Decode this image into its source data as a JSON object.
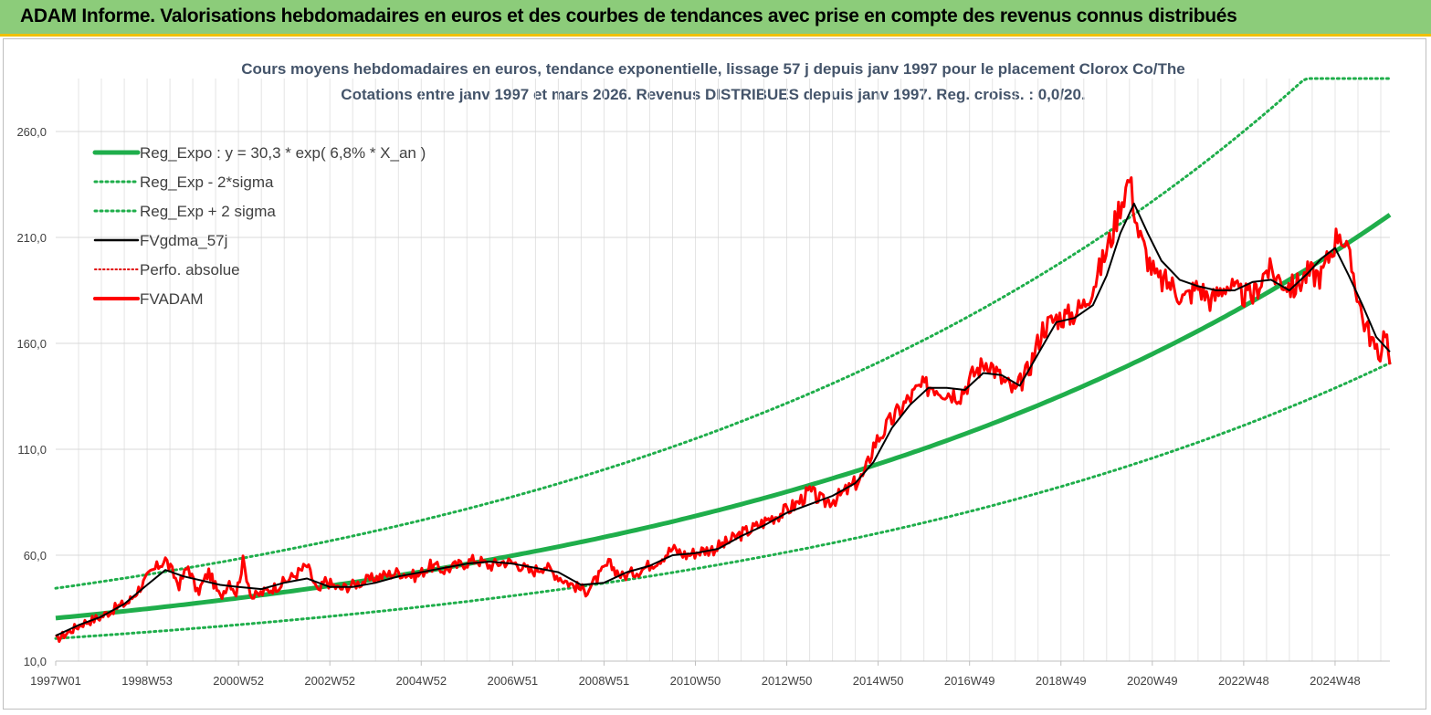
{
  "header": {
    "title": "ADAM Informe. Valorisations hebdomadaires en euros et des courbes de tendances avec prise en compte des revenus connus distribués"
  },
  "chart_data": {
    "type": "line",
    "title_lines": [
      "Cours moyens hebdomadaires en euros, tendance exponentielle, lissage 57 j depuis janv 1997 pour le placement Clorox Co/The",
      "Cotations entre janv 1997 et mars 2026. Revenus DISTRIBUES depuis janv 1997. Reg. croiss. : 0,0/20."
    ],
    "x_range": [
      1997.0,
      2026.2
    ],
    "ylim": [
      10,
      285
    ],
    "y_ticks": [
      "10,0",
      "60,0",
      "110,0",
      "160,0",
      "210,0",
      "260,0"
    ],
    "y_tick_values": [
      10,
      60,
      110,
      160,
      210,
      260
    ],
    "x_tick_labels": [
      "1997W01",
      "1998W53",
      "2000W52",
      "2002W52",
      "2004W52",
      "2006W51",
      "2008W51",
      "2010W50",
      "2012W50",
      "2014W50",
      "2016W49",
      "2018W49",
      "2020W49",
      "2022W48",
      "2024W48"
    ],
    "x_tick_years": [
      1997.0,
      1999.0,
      2001.0,
      2003.0,
      2005.0,
      2007.0,
      2009.0,
      2011.0,
      2013.0,
      2015.0,
      2017.0,
      2019.0,
      2021.0,
      2023.0,
      2025.0
    ],
    "grid": true,
    "legend_position": "top-left",
    "regression": {
      "a": 30.3,
      "growth": 0.068,
      "lower_factor": 0.683,
      "upper_factor": 1.465,
      "cap": 285
    },
    "series": [
      {
        "name": "Reg_Expo : y = 30,3 * exp( 6,8% *  X_an )",
        "color": "#1fae4b",
        "style": "solid-thick"
      },
      {
        "name": "Reg_Exp - 2*sigma",
        "color": "#1fae4b",
        "style": "dotted"
      },
      {
        "name": "Reg_Exp + 2 sigma",
        "color": "#1fae4b",
        "style": "dotted"
      },
      {
        "name": "FVgdma_57j",
        "color": "#000000",
        "style": "solid"
      },
      {
        "name": "Perfo. absolue",
        "color": "#e00000",
        "style": "dotted"
      },
      {
        "name": "FVADAM",
        "color": "#ff0000",
        "style": "solid-thick"
      }
    ],
    "fvadam": {
      "x": [
        1997.0,
        1997.3,
        1997.6,
        1998.0,
        1998.3,
        1998.6,
        1998.85,
        1999.1,
        1999.4,
        1999.7,
        1999.9,
        2000.1,
        2000.35,
        2000.6,
        2000.8,
        2000.95,
        2001.1,
        2001.3,
        2001.6,
        2001.9,
        2002.2,
        2002.5,
        2002.75,
        2002.9,
        2003.2,
        2003.5,
        2003.8,
        2004.1,
        2004.5,
        2004.9,
        2005.2,
        2005.5,
        2005.9,
        2006.2,
        2006.5,
        2006.8,
        2007.1,
        2007.4,
        2007.7,
        2008.0,
        2008.3,
        2008.6,
        2008.85,
        2009.1,
        2009.4,
        2009.8,
        2010.2,
        2010.5,
        2010.8,
        2011.1,
        2011.4,
        2011.7,
        2012.0,
        2012.3,
        2012.6,
        2012.9,
        2013.2,
        2013.5,
        2013.8,
        2014.1,
        2014.4,
        2014.7,
        2014.9,
        2015.1,
        2015.3,
        2015.6,
        2015.9,
        2016.2,
        2016.5,
        2016.8,
        2017.1,
        2017.4,
        2017.7,
        2018.0,
        2018.3,
        2018.6,
        2018.9,
        2019.2,
        2019.5,
        2019.8,
        2020.1,
        2020.3,
        2020.5,
        2020.7,
        2020.9,
        2021.1,
        2021.4,
        2021.7,
        2022.0,
        2022.3,
        2022.6,
        2022.9,
        2023.2,
        2023.5,
        2023.8,
        2024.1,
        2024.4,
        2024.7,
        2024.9,
        2025.1,
        2025.4,
        2025.6,
        2025.8,
        2025.95,
        2026.1,
        2026.2
      ],
      "y": [
        20,
        24,
        28,
        31,
        35,
        38,
        45,
        52,
        58,
        46,
        55,
        42,
        52,
        40,
        48,
        42,
        57,
        40,
        43,
        46,
        50,
        55,
        42,
        48,
        44,
        46,
        48,
        50,
        52,
        50,
        55,
        53,
        56,
        58,
        55,
        57,
        56,
        52,
        55,
        50,
        46,
        43,
        49,
        56,
        50,
        53,
        58,
        63,
        60,
        62,
        63,
        66,
        70,
        73,
        77,
        80,
        84,
        90,
        85,
        87,
        92,
        98,
        112,
        118,
        124,
        132,
        139,
        140,
        137,
        136,
        146,
        152,
        143,
        137,
        148,
        167,
        172,
        173,
        178,
        192,
        210,
        226,
        238,
        212,
        200,
        190,
        188,
        181,
        187,
        180,
        188,
        183,
        182,
        195,
        190,
        186,
        193,
        192,
        203,
        214,
        193,
        172,
        162,
        152,
        168,
        150
      ]
    },
    "fvgdma": {
      "x": [
        1997.0,
        1997.5,
        1998.0,
        1998.5,
        1999.0,
        1999.4,
        1999.8,
        2000.2,
        2000.6,
        2001.0,
        2001.5,
        2002.0,
        2002.5,
        2003.0,
        2003.5,
        2004.0,
        2004.5,
        2005.0,
        2005.5,
        2006.0,
        2006.5,
        2007.0,
        2007.5,
        2008.0,
        2008.5,
        2009.0,
        2009.5,
        2010.0,
        2010.5,
        2011.0,
        2011.5,
        2012.0,
        2012.5,
        2013.0,
        2013.5,
        2014.0,
        2014.5,
        2014.9,
        2015.3,
        2015.7,
        2016.1,
        2016.5,
        2016.9,
        2017.3,
        2017.7,
        2018.1,
        2018.5,
        2018.9,
        2019.3,
        2019.7,
        2020.0,
        2020.3,
        2020.6,
        2020.9,
        2021.2,
        2021.6,
        2022.0,
        2022.4,
        2022.8,
        2023.2,
        2023.6,
        2024.0,
        2024.4,
        2024.7,
        2025.0,
        2025.3,
        2025.6,
        2025.9,
        2026.2
      ],
      "y": [
        22,
        27,
        31,
        37,
        46,
        53,
        50,
        48,
        46,
        45,
        44,
        47,
        49,
        45,
        45,
        47,
        50,
        52,
        54,
        56,
        57,
        56,
        54,
        52,
        46,
        47,
        52,
        55,
        60,
        61,
        63,
        69,
        74,
        80,
        84,
        88,
        94,
        104,
        120,
        131,
        139,
        139,
        138,
        146,
        145,
        140,
        155,
        170,
        172,
        178,
        192,
        212,
        226,
        212,
        199,
        190,
        187,
        185,
        185,
        189,
        190,
        185,
        193,
        200,
        205,
        192,
        178,
        163,
        156
      ]
    }
  }
}
